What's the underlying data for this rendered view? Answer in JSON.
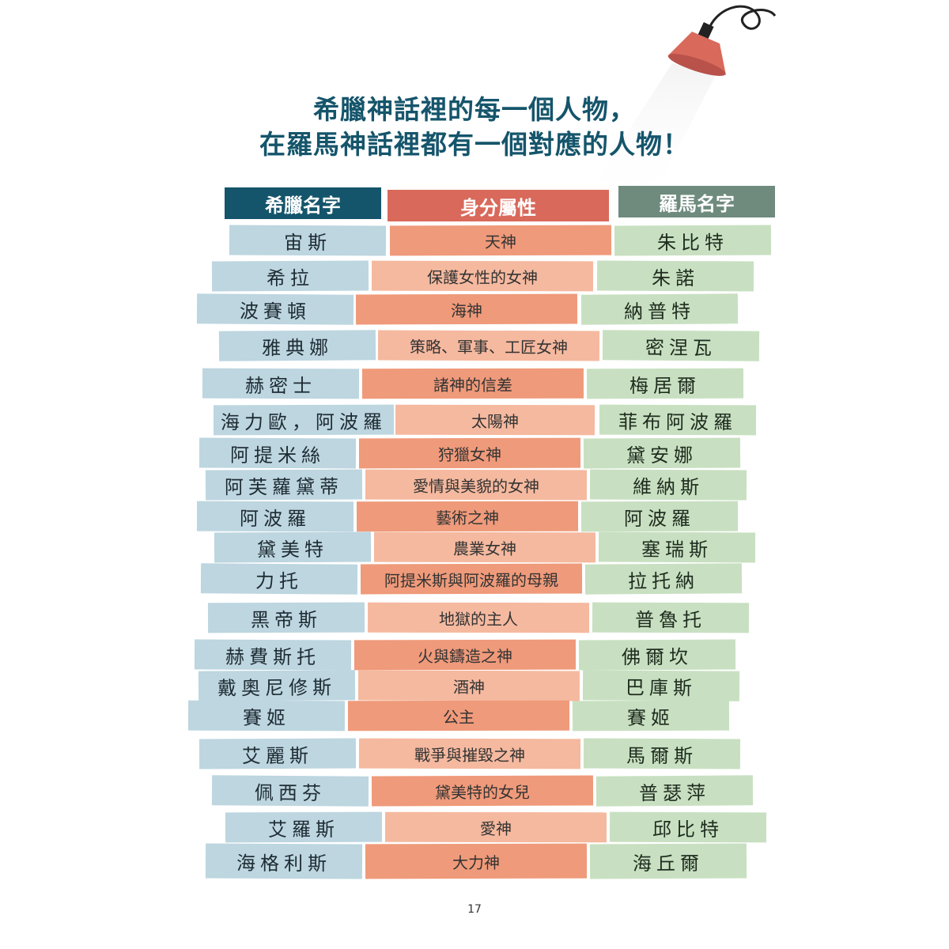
{
  "heading": {
    "line1": "希臘神話裡的每一個人物，",
    "line2": "在羅馬神話裡都有一個對應的人物！"
  },
  "headers": {
    "greek": "希臘名字",
    "identity": "身分屬性",
    "roman": "羅馬名字"
  },
  "colors": {
    "title": "#15556b",
    "greek_header": "#15556b",
    "identity_header": "#d9695b",
    "roman_header": "#6e8b7d",
    "greek_cell": "#bdd6e0",
    "identity_cell_dark": "#ef9a7a",
    "identity_cell_light": "#f5b99f",
    "roman_cell": "#c8e0c1",
    "lamp": "#d9695b"
  },
  "rows": [
    {
      "greek": "宙斯",
      "identity": "天神",
      "roman": "朱比特"
    },
    {
      "greek": "希拉",
      "identity": "保護女性的女神",
      "roman": "朱諾"
    },
    {
      "greek": "波賽頓",
      "identity": "海神",
      "roman": "納普特"
    },
    {
      "greek": "雅典娜",
      "identity": "策略、軍事、工匠女神",
      "roman": "密涅瓦"
    },
    {
      "greek": "赫密士",
      "identity": "諸神的信差",
      "roman": "梅居爾"
    },
    {
      "greek": "海力歐，阿波羅",
      "identity": "太陽神",
      "roman": "菲布阿波羅"
    },
    {
      "greek": "阿提米絲",
      "identity": "狩獵女神",
      "roman": "黛安娜"
    },
    {
      "greek": "阿芙蘿黛蒂",
      "identity": "愛情與美貌的女神",
      "roman": "維納斯"
    },
    {
      "greek": "阿波羅",
      "identity": "藝術之神",
      "roman": "阿波羅"
    },
    {
      "greek": "黛美特",
      "identity": "農業女神",
      "roman": "塞瑞斯"
    },
    {
      "greek": "力托",
      "identity": "阿提米斯與阿波羅的母親",
      "roman": "拉托納"
    },
    {
      "greek": "黑帝斯",
      "identity": "地獄的主人",
      "roman": "普魯托"
    },
    {
      "greek": "赫費斯托",
      "identity": "火與鑄造之神",
      "roman": "佛爾坎"
    },
    {
      "greek": "戴奧尼修斯",
      "identity": "酒神",
      "roman": "巴庫斯"
    },
    {
      "greek": "賽姬",
      "identity": "公主",
      "roman": "賽姬"
    },
    {
      "greek": "艾麗斯",
      "identity": "戰爭與摧毀之神",
      "roman": "馬爾斯"
    },
    {
      "greek": "佩西芬",
      "identity": "黛美特的女兒",
      "roman": "普瑟萍"
    },
    {
      "greek": "艾羅斯",
      "identity": "愛神",
      "roman": "邱比特"
    },
    {
      "greek": "海格利斯",
      "identity": "大力神",
      "roman": "海丘爾"
    }
  ],
  "page_number": "17"
}
